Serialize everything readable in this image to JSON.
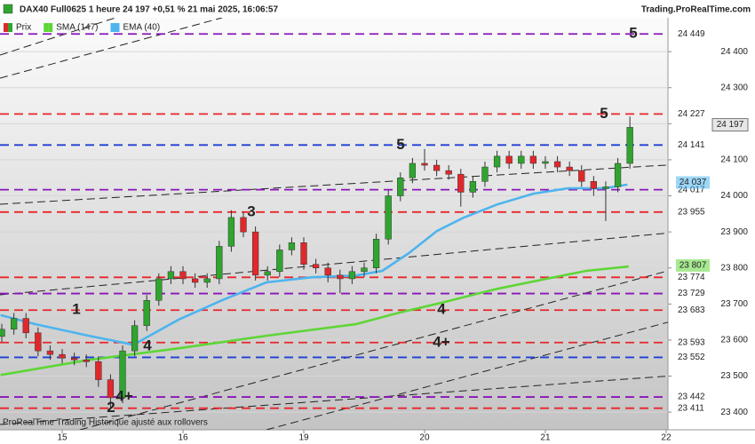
{
  "header": {
    "title": "DAX40 Full0625 1 heure 24 197 +0,51 % 21 mai 2025, 16:06:57",
    "site": "Trading.ProRealTime.com"
  },
  "footer": "ProRealTime Trading  Historique ajusté aux rollovers",
  "chart_data": {
    "type": "candlestick",
    "xlim": [
      14.485,
      20.015
    ],
    "xticks": [
      15,
      16,
      {
        "value": 17,
        "label": "19"
      },
      {
        "value": 18,
        "label": "20"
      },
      {
        "value": 19,
        "label": "21"
      },
      {
        "value": 20,
        "label": "22"
      }
    ],
    "ylim": [
      23356,
      24489
    ],
    "yticks": [
      {
        "value": 23400,
        "label": "23 400"
      },
      {
        "value": 23500,
        "label": "23 500"
      },
      {
        "value": 23600,
        "label": "23 600"
      },
      {
        "value": 23700,
        "label": "23 700"
      },
      {
        "value": 23800,
        "label": "23 800"
      },
      {
        "value": 23900,
        "label": "23 900"
      },
      {
        "value": 24000,
        "label": "24 000"
      },
      {
        "value": 24100,
        "label": "24 100"
      },
      {
        "value": 24200,
        "label": "24 200"
      },
      {
        "value": 24300,
        "label": "24 300"
      },
      {
        "value": 24400,
        "label": "24 400"
      }
    ],
    "grid": true,
    "candles": {
      "name": "Prix",
      "up_color": "#2fa52f",
      "down_color": "#e0282b",
      "x": [
        14.5,
        14.6,
        14.7,
        14.8,
        14.9,
        15,
        15.1,
        15.2,
        15.3,
        15.4,
        15.5,
        15.6,
        15.7,
        15.8,
        15.9,
        16,
        16.1,
        16.2,
        16.3,
        16.4,
        16.5,
        16.6,
        16.7,
        16.8,
        16.9,
        17,
        17.1,
        17.2,
        17.3,
        17.4,
        17.5,
        17.6,
        17.7,
        17.8,
        17.9,
        18,
        18.1,
        18.2,
        18.3,
        18.4,
        18.5,
        18.6,
        18.7,
        18.8,
        18.9,
        19,
        19.1,
        19.2,
        19.3,
        19.4,
        19.5,
        19.6,
        19.7
      ],
      "open": [
        23610,
        23630,
        23660,
        23620,
        23570,
        23560,
        23550,
        23545,
        23540,
        23490,
        23440,
        23570,
        23640,
        23710,
        23770,
        23790,
        23770,
        23760,
        23770,
        23860,
        23940,
        23900,
        23780,
        23790,
        23850,
        23870,
        23810,
        23800,
        23780,
        23770,
        23790,
        23800,
        23880,
        24000,
        24050,
        24090,
        24085,
        24070,
        24060,
        24010,
        24040,
        24080,
        24110,
        24090,
        24110,
        24090,
        24095,
        24080,
        24070,
        24040,
        24020,
        24025,
        24090
      ],
      "high": [
        23645,
        23675,
        23675,
        23635,
        23585,
        23575,
        23565,
        23560,
        23555,
        23505,
        23585,
        23655,
        23725,
        23785,
        23805,
        23805,
        23785,
        23785,
        23875,
        23960,
        23955,
        23915,
        23805,
        23865,
        23885,
        23885,
        23825,
        23815,
        23795,
        23805,
        23815,
        23895,
        24015,
        24065,
        24105,
        24130,
        24100,
        24085,
        24075,
        24055,
        24095,
        24125,
        24125,
        24125,
        24125,
        24110,
        24110,
        24095,
        24085,
        24055,
        24040,
        24105,
        24220
      ],
      "low": [
        23595,
        23615,
        23605,
        23555,
        23545,
        23535,
        23530,
        23525,
        23470,
        23410,
        23425,
        23555,
        23625,
        23695,
        23755,
        23755,
        23745,
        23745,
        23755,
        23845,
        23885,
        23765,
        23765,
        23775,
        23835,
        23795,
        23785,
        23760,
        23730,
        23755,
        23775,
        23785,
        23865,
        23985,
        24035,
        24070,
        24055,
        24045,
        23970,
        23995,
        24025,
        24065,
        24075,
        24075,
        24075,
        24075,
        24065,
        24055,
        24025,
        24000,
        23930,
        24010,
        24075
      ],
      "close": [
        23630,
        23660,
        23620,
        23570,
        23560,
        23550,
        23545,
        23540,
        23490,
        23440,
        23570,
        23640,
        23710,
        23770,
        23790,
        23770,
        23760,
        23770,
        23860,
        23940,
        23900,
        23780,
        23790,
        23850,
        23870,
        23810,
        23800,
        23780,
        23770,
        23790,
        23800,
        23880,
        24000,
        24050,
        24090,
        24085,
        24070,
        24060,
        24010,
        24040,
        24080,
        24110,
        24090,
        24110,
        24090,
        24095,
        24080,
        24070,
        24040,
        24020,
        24025,
        24090,
        24190
      ],
      "last": {
        "value": 24197,
        "label": "24 197"
      }
    },
    "series": [
      {
        "name": "SMA (147)",
        "color": "#5ed636",
        "x": [
          14.49,
          15.22,
          15.96,
          16.69,
          17.43,
          17.79,
          18.16,
          18.6,
          19.04,
          19.34,
          19.69
        ],
        "values": [
          23503,
          23545,
          23577,
          23612,
          23644,
          23676,
          23705,
          23742,
          23772,
          23792,
          23804
        ],
        "last": {
          "value": 23807,
          "label": "23 807"
        }
      },
      {
        "name": "EMA (40)",
        "color": "#4db4ee",
        "x": [
          14.49,
          14.78,
          15.22,
          15.59,
          15.96,
          16.32,
          16.69,
          17.06,
          17.43,
          17.65,
          17.87,
          18.1,
          18.32,
          18.6,
          18.9,
          19.19,
          19.49,
          19.68
        ],
        "values": [
          23669,
          23644,
          23612,
          23587,
          23656,
          23710,
          23760,
          23774,
          23779,
          23792,
          23841,
          23902,
          23939,
          23976,
          24006,
          24021,
          24021,
          24031
        ],
        "last": {
          "value": 24037,
          "label": "24 037"
        }
      }
    ],
    "levels": [
      {
        "value": 24449,
        "label": "24 449",
        "color": "#8a16b8"
      },
      {
        "value": 24227,
        "label": "24 227",
        "color": "#e8262b"
      },
      {
        "value": 24141,
        "label": "24 141",
        "color": "#1d3fd6"
      },
      {
        "value": 24017,
        "label": "24 017",
        "color": "#8a16b8"
      },
      {
        "value": 23955,
        "label": "23 955",
        "color": "#e8262b"
      },
      {
        "value": 23774,
        "label": "23 774",
        "color": "#e8262b"
      },
      {
        "value": 23729,
        "label": "23 729",
        "color": "#8a16b8"
      },
      {
        "value": 23683,
        "label": "23 683",
        "color": "#e8262b"
      },
      {
        "value": 23593,
        "label": "23 593",
        "color": "#e8262b"
      },
      {
        "value": 23552,
        "label": "23 552",
        "color": "#1d3fd6"
      },
      {
        "value": 23442,
        "label": "23 442",
        "color": "#8a16b8"
      },
      {
        "value": 23411,
        "label": "23 411",
        "color": "#e8262b"
      }
    ],
    "annotations": [
      {
        "text": "5",
        "color": "#8a16b8",
        "price": 24449
      },
      {
        "text": "5",
        "color": "#e8262b",
        "price": 24227
      },
      {
        "text": "5",
        "color": "#1d3fd6",
        "price": 24141
      },
      {
        "text": "3",
        "color": "#e8262b",
        "price": 23955
      },
      {
        "text": "1",
        "color": "#e8262b",
        "price": 23683
      },
      {
        "text": "4",
        "color": "#e8262b",
        "price": 23683
      },
      {
        "text": "4+",
        "color": "#e8262b",
        "price": 23593
      },
      {
        "text": "4",
        "color": "#8a16b8",
        "price": 23582
      },
      {
        "text": "4+",
        "color": "#8a16b8",
        "price": 23442
      },
      {
        "text": "2",
        "color": "#e8262b",
        "price": 23411
      }
    ]
  }
}
